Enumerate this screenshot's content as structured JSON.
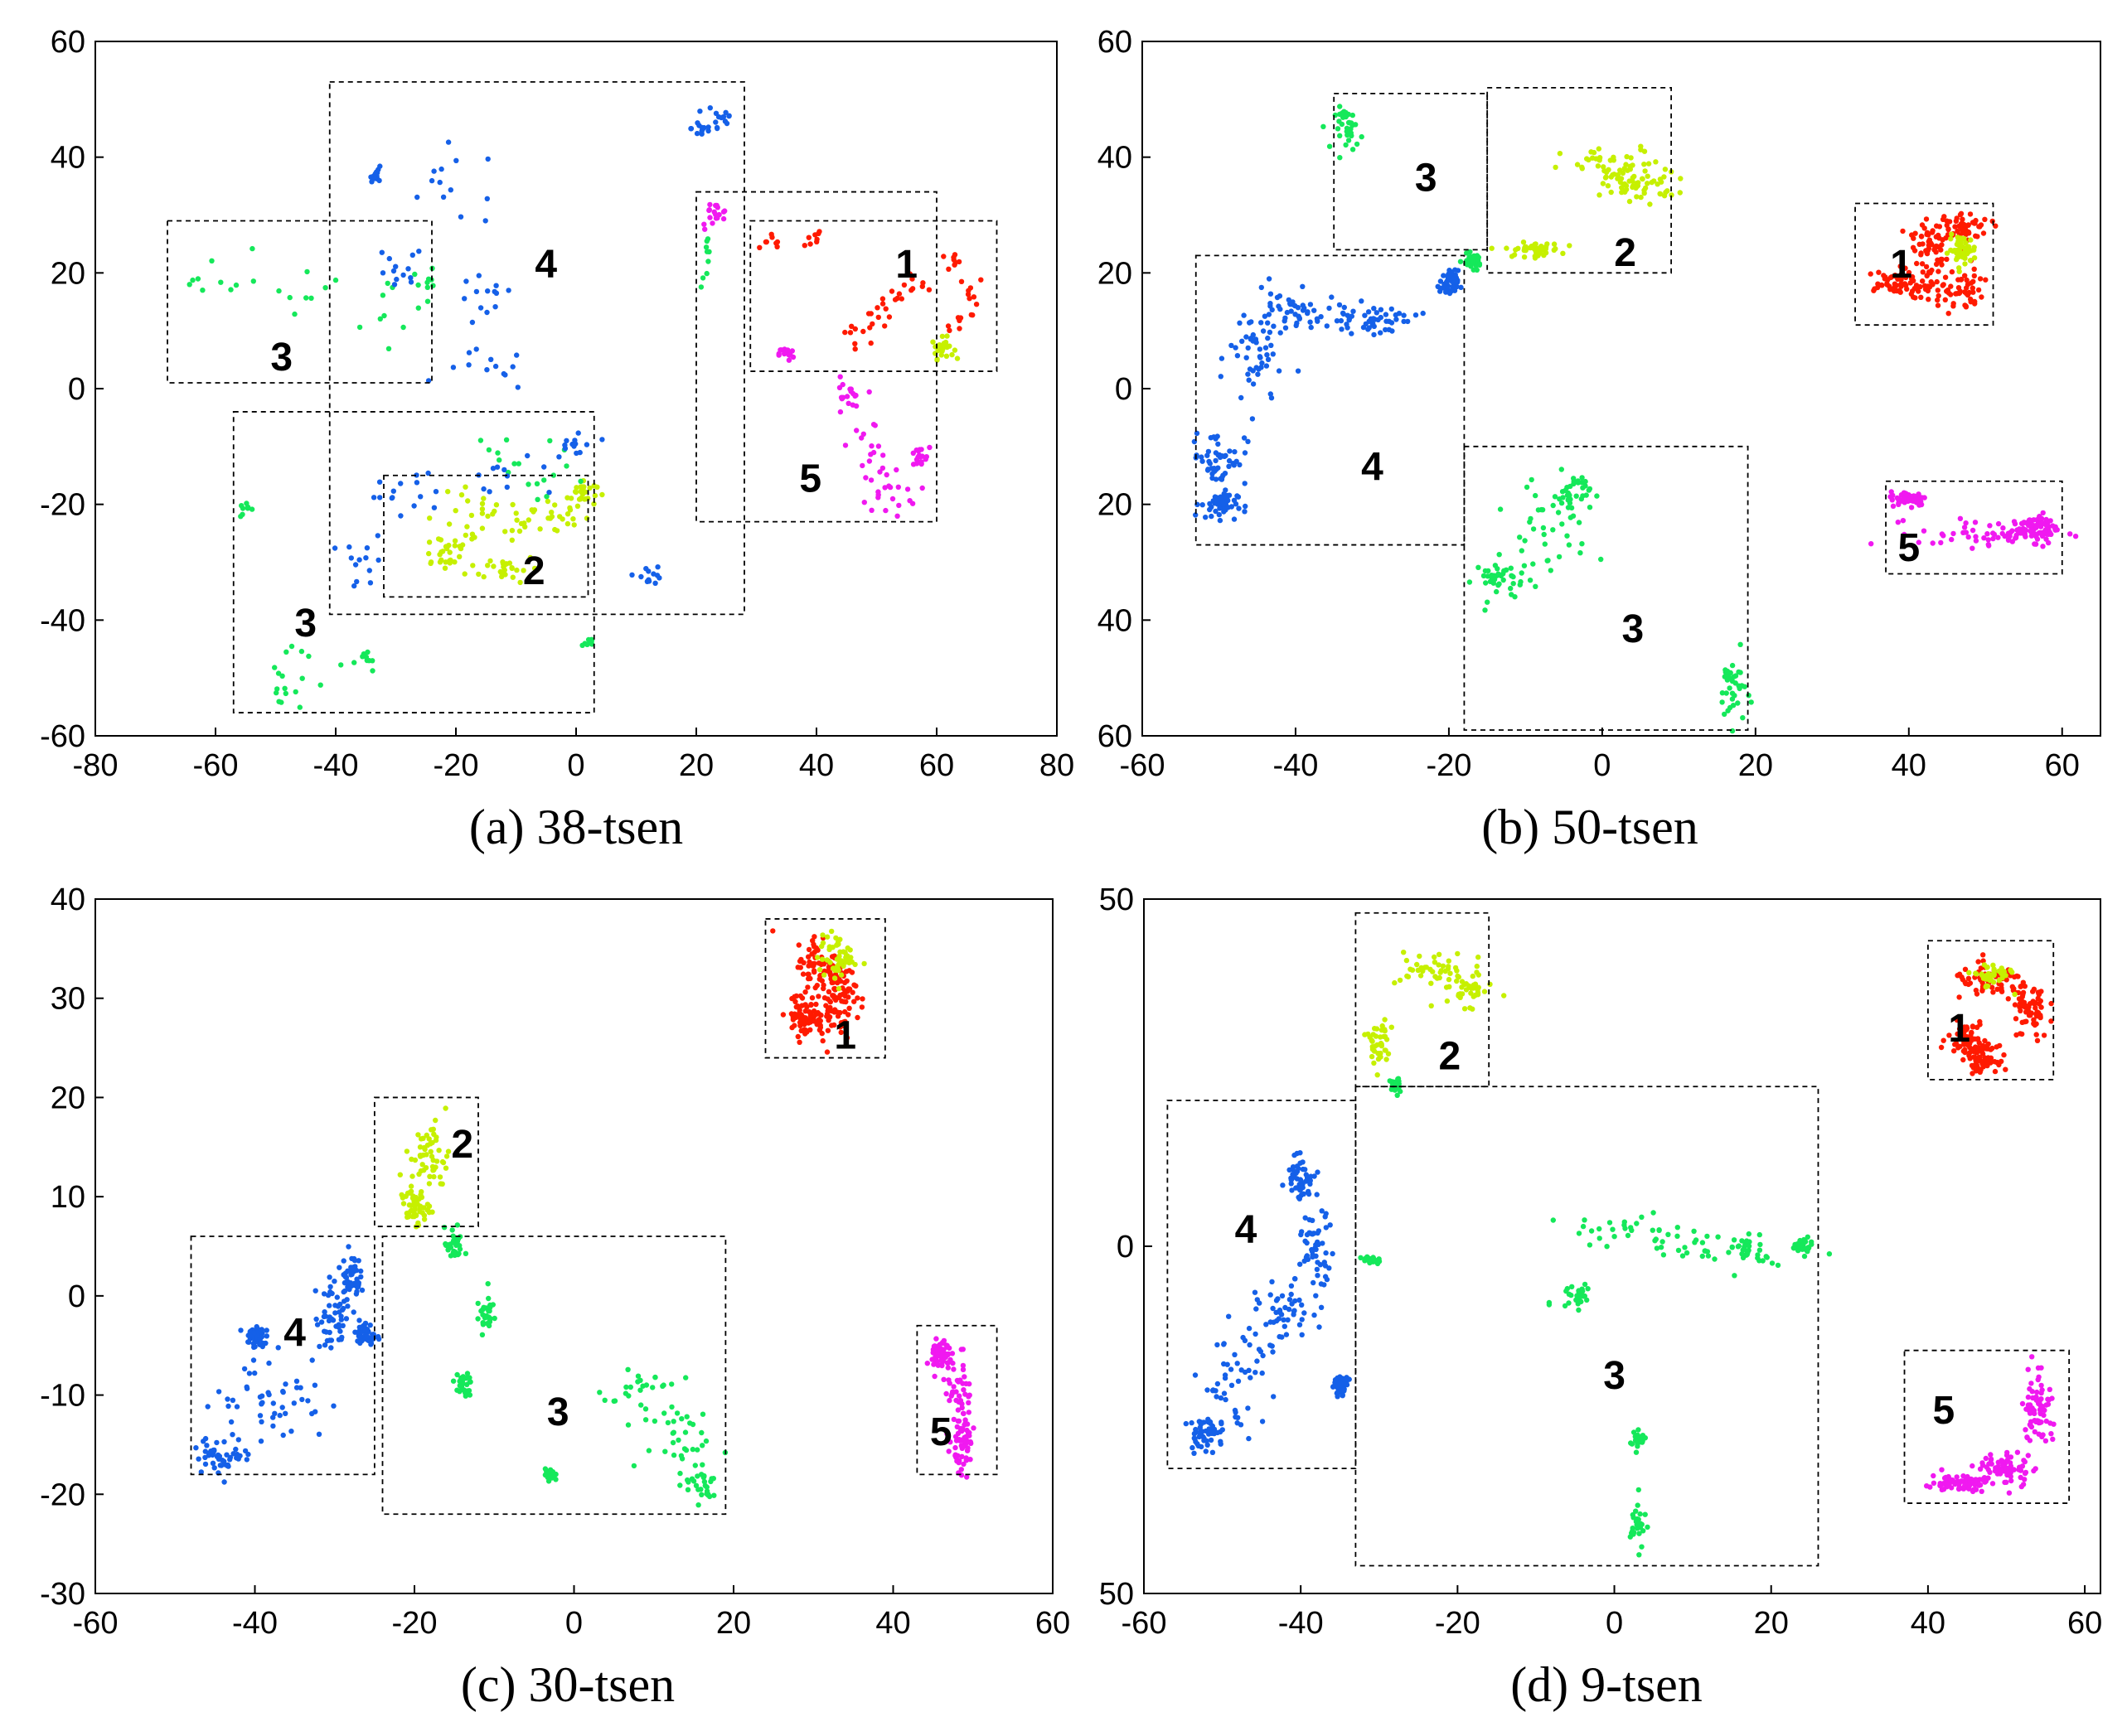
{
  "chart_data": [
    {
      "type": "scatter",
      "caption": "(a) 38-tsen",
      "xticks": [
        "-80",
        "-60",
        "-40",
        "-20",
        "0",
        "20",
        "40",
        "60",
        "80"
      ],
      "yticks": [
        "60",
        "40",
        "20",
        "0",
        "-20",
        "-40",
        "-60"
      ],
      "xlim": [
        -80,
        80
      ],
      "ylim": [
        -60,
        60
      ],
      "regions": [
        {
          "label": "1",
          "x0": 29,
          "x1": 70,
          "y0": 3,
          "y1": 29,
          "lx": 55,
          "ly": 21
        },
        {
          "label": "1",
          "x0": 20,
          "x1": 60,
          "y0": -23,
          "y1": 34
        },
        {
          "label": "2",
          "x0": -32,
          "x1": 2,
          "y0": -36,
          "y1": -15,
          "lx": -7,
          "ly": -32
        },
        {
          "label": "3",
          "x0": -68,
          "x1": -24,
          "y0": 1,
          "y1": 29,
          "lx": -49,
          "ly": 5
        },
        {
          "label": "3",
          "x0": -57,
          "x1": 3,
          "y0": -56,
          "y1": -4,
          "lx": -45,
          "ly": -41
        },
        {
          "label": "4",
          "x0": -41,
          "x1": 28,
          "y0": -39,
          "y1": 53,
          "lx": -5,
          "ly": 21
        },
        {
          "label": "5",
          "lx": 39,
          "ly": -16
        }
      ],
      "clusters": [
        {
          "color": "#ff1a00",
          "n": 70,
          "blobs": [
            [
              33,
              25,
              2,
              2
            ],
            [
              39,
              26,
              2,
              1.5
            ],
            [
              47,
              10,
              3,
              2
            ],
            [
              53,
              15,
              2,
              1.5
            ],
            [
              57,
              18,
              2,
              2
            ],
            [
              64,
              11,
              2,
              2
            ],
            [
              66,
              17,
              1.5,
              2
            ],
            [
              62,
              22,
              2,
              1.5
            ],
            [
              50,
              12,
              2,
              2
            ]
          ]
        },
        {
          "color": "#c6f000",
          "n": 160,
          "blobs": [
            [
              -15,
              -23,
              9,
              4
            ],
            [
              -5,
              -22,
              6,
              3
            ],
            [
              -22,
              -28,
              4,
              3
            ],
            [
              -12,
              -31,
              5,
              2
            ],
            [
              61,
              7,
              1.5,
              1.5
            ],
            [
              1,
              -18,
              2,
              2
            ]
          ]
        },
        {
          "color": "#15e85a",
          "n": 110,
          "blobs": [
            [
              -60,
              20,
              5,
              4
            ],
            [
              -45,
              18,
              5,
              4
            ],
            [
              -30,
              12,
              5,
              6
            ],
            [
              -25,
              18,
              2,
              2
            ],
            [
              -10,
              -10,
              10,
              4
            ],
            [
              -5,
              -16,
              6,
              2
            ],
            [
              -45,
              -48,
              6,
              3
            ],
            [
              -35,
              -47,
              2,
              2
            ],
            [
              -50,
              -52,
              3,
              2
            ],
            [
              -55,
              -21,
              1,
              1
            ],
            [
              22,
              22,
              1,
              4
            ],
            [
              2,
              -44,
              1,
              1
            ]
          ]
        },
        {
          "color": "#1560e8",
          "n": 150,
          "blobs": [
            [
              24,
              47,
              2,
              3
            ],
            [
              21,
              45,
              1.5,
              1.5
            ],
            [
              -20,
              35,
              9,
              6
            ],
            [
              -30,
              20,
              4,
              4
            ],
            [
              -15,
              15,
              4,
              4
            ],
            [
              -15,
              3,
              6,
              3
            ],
            [
              -30,
              -18,
              6,
              4
            ],
            [
              -10,
              -16,
              10,
              3
            ],
            [
              0,
              -10,
              3,
              3
            ],
            [
              -35,
              -30,
              3,
              4
            ],
            [
              12,
              -32,
              2,
              1.5
            ],
            [
              -33,
              37,
              1,
              1
            ]
          ]
        },
        {
          "color": "#f019f0",
          "n": 110,
          "blobs": [
            [
              23,
              30,
              2,
              2
            ],
            [
              49,
              -10,
              3,
              4
            ],
            [
              45,
              -2,
              2,
              3
            ],
            [
              52,
              -18,
              4,
              3
            ],
            [
              57,
              -12,
              1.5,
              1.5
            ],
            [
              35,
              6,
              1,
              1
            ]
          ]
        }
      ]
    },
    {
      "type": "scatter",
      "caption": "(b) 50-tsen",
      "xticks": [
        "-60",
        "-40",
        "-20",
        "0",
        "20",
        "40",
        "60"
      ],
      "yticks": [
        "60",
        "40",
        "20",
        "0",
        "20",
        "40",
        "60"
      ],
      "xlim": [
        -60,
        65
      ],
      "ylim": [
        -60,
        60
      ],
      "regions": [
        {
          "label": "1",
          "x0": 33,
          "x1": 51,
          "y0": 11,
          "y1": 32,
          "lx": 39,
          "ly": 21
        },
        {
          "label": "2",
          "x0": -15,
          "x1": 9,
          "y0": 20,
          "y1": 52,
          "lx": 3,
          "ly": 23
        },
        {
          "label": "3",
          "x0": -35,
          "x1": -15,
          "y0": 24,
          "y1": 51,
          "lx": -23,
          "ly": 36
        },
        {
          "label": "3",
          "x0": -18,
          "x1": 19,
          "y0": -59,
          "y1": -10,
          "lx": 4,
          "ly": -42
        },
        {
          "label": "4",
          "x0": -53,
          "x1": -18,
          "y0": -27,
          "y1": 23,
          "lx": -30,
          "ly": -14
        },
        {
          "label": "5",
          "x0": 37,
          "x1": 60,
          "y0": -32,
          "y1": -16,
          "lx": 40,
          "ly": -28
        }
      ],
      "clusters": [
        {
          "color": "#ff1a00",
          "n": 240,
          "blobs": [
            [
              43,
              24,
              4,
              5
            ],
            [
              47,
              28,
              3,
              2
            ],
            [
              38,
              18,
              4,
              2
            ],
            [
              46,
              17,
              3,
              3
            ]
          ]
        },
        {
          "color": "#c6f000",
          "n": 200,
          "blobs": [
            [
              2,
              38,
              6,
              3
            ],
            [
              5,
              35,
              4,
              2
            ],
            [
              -9,
              24,
              3,
              1
            ],
            [
              47,
              24,
              1.5,
              2
            ]
          ]
        },
        {
          "color": "#15e85a",
          "n": 230,
          "blobs": [
            [
              -33,
              45,
              1.5,
              3
            ],
            [
              -8,
              -25,
              5,
              7
            ],
            [
              -13,
              -33,
              3,
              3
            ],
            [
              -4,
              -18,
              2,
              3
            ],
            [
              17,
              -52,
              1.5,
              5
            ],
            [
              -17,
              22,
              1,
              1
            ]
          ]
        },
        {
          "color": "#1560e8",
          "n": 300,
          "blobs": [
            [
              -45,
              5,
              3,
              8
            ],
            [
              -40,
              13,
              5,
              3
            ],
            [
              -30,
              12,
              5,
              2
            ],
            [
              -50,
              -12,
              3,
              4
            ],
            [
              -50,
              -20,
              2,
              2
            ],
            [
              -20,
              18,
              1,
              2
            ]
          ]
        },
        {
          "color": "#f019f0",
          "n": 200,
          "blobs": [
            [
              51,
              -25,
              8,
              2
            ],
            [
              57,
              -24,
              2,
              2
            ],
            [
              40,
              -19,
              2,
              1
            ]
          ]
        }
      ]
    },
    {
      "type": "scatter",
      "caption": "(c) 30-tsen",
      "xticks": [
        "-60",
        "-40",
        "-20",
        "0",
        "20",
        "40",
        "60"
      ],
      "yticks": [
        "40",
        "30",
        "20",
        "10",
        "0",
        "-10",
        "-20",
        "-30"
      ],
      "xlim": [
        -60,
        60
      ],
      "ylim": [
        -30,
        40
      ],
      "regions": [
        {
          "label": "1",
          "x0": 24,
          "x1": 39,
          "y0": 24,
          "y1": 38,
          "lx": 34,
          "ly": 26
        },
        {
          "label": "2",
          "x0": -25,
          "x1": -12,
          "y0": 7,
          "y1": 20,
          "lx": -14,
          "ly": 15
        },
        {
          "label": "3",
          "x0": -24,
          "x1": 19,
          "y0": -22,
          "y1": 6,
          "lx": -2,
          "ly": -12
        },
        {
          "label": "4",
          "x0": -48,
          "x1": -25,
          "y0": -18,
          "y1": 6,
          "lx": -35,
          "ly": -4
        },
        {
          "label": "5",
          "x0": 43,
          "x1": 53,
          "y0": -18,
          "y1": -3,
          "lx": 46,
          "ly": -14
        }
      ],
      "clusters": [
        {
          "color": "#ff1a00",
          "n": 230,
          "blobs": [
            [
              31,
              33,
              3,
              3
            ],
            [
              29,
              28,
              2,
              1.5
            ],
            [
              33,
              30,
              2,
              3
            ]
          ]
        },
        {
          "color": "#c6f000",
          "n": 160,
          "blobs": [
            [
              -18,
              14,
              2,
              3
            ],
            [
              -20,
              9,
              1.5,
              1.5
            ],
            [
              33,
              34,
              2,
              2
            ]
          ]
        },
        {
          "color": "#15e85a",
          "n": 200,
          "blobs": [
            [
              8,
              -10,
              4,
              4
            ],
            [
              13,
              -14,
              3,
              3
            ],
            [
              16,
              -19,
              2,
              1.5
            ],
            [
              -11,
              -2,
              1,
              1.5
            ],
            [
              -14,
              -9,
              1,
              1
            ],
            [
              -15,
              5,
              1,
              1.5
            ],
            [
              -3,
              -18,
              0.5,
              0.5
            ]
          ]
        },
        {
          "color": "#1560e8",
          "n": 300,
          "blobs": [
            [
              -38,
              -10,
              6,
              4
            ],
            [
              -44,
              -16,
              3,
              1.5
            ],
            [
              -30,
              -2,
              2,
              3
            ],
            [
              -28,
              2,
              1,
              2
            ],
            [
              -40,
              -4,
              1,
              1
            ],
            [
              -26,
              -4,
              1,
              1
            ]
          ]
        },
        {
          "color": "#f019f0",
          "n": 160,
          "blobs": [
            [
              48,
              -10,
              1.5,
              4
            ],
            [
              46,
              -6,
              1,
              1.5
            ],
            [
              49,
              -15,
              1,
              2
            ]
          ]
        }
      ]
    },
    {
      "type": "scatter",
      "caption": "(d) 9-tsen",
      "xticks": [
        "-60",
        "-40",
        "-20",
        "0",
        "20",
        "40",
        "60"
      ],
      "yticks": [
        "50",
        "0",
        "50"
      ],
      "xlim": [
        -60,
        62
      ],
      "ylim": [
        -50,
        50
      ],
      "regions": [
        {
          "label": "1",
          "x0": 40,
          "x1": 56,
          "y0": 24,
          "y1": 44,
          "lx": 44,
          "ly": 31
        },
        {
          "label": "2",
          "x0": -33,
          "x1": -16,
          "y0": 23,
          "y1": 48,
          "lx": -21,
          "ly": 27
        },
        {
          "label": "3",
          "x0": -33,
          "x1": 26,
          "y0": -46,
          "y1": 23,
          "lx": 0,
          "ly": -19
        },
        {
          "label": "4",
          "x0": -57,
          "x1": -33,
          "y0": -32,
          "y1": 21,
          "lx": -47,
          "ly": 2
        },
        {
          "label": "5",
          "x0": 37,
          "x1": 58,
          "y0": -37,
          "y1": -15,
          "lx": 42,
          "ly": -24
        }
      ],
      "clusters": [
        {
          "color": "#ff1a00",
          "n": 260,
          "blobs": [
            [
              48,
              38,
              4,
              2
            ],
            [
              53,
              34,
              2,
              4
            ],
            [
              45,
              30,
              2,
              2
            ],
            [
              47,
              27,
              1.5,
              1.5
            ]
          ]
        },
        {
          "color": "#c6f000",
          "n": 160,
          "blobs": [
            [
              -23,
              40,
              4,
              2
            ],
            [
              -19,
              37,
              3,
              2
            ],
            [
              -30,
              29,
              1.5,
              3
            ],
            [
              48,
              39,
              2,
              1.5
            ]
          ]
        },
        {
          "color": "#15e85a",
          "n": 250,
          "blobs": [
            [
              0,
              2,
              8,
              2
            ],
            [
              12,
              0,
              6,
              2
            ],
            [
              18,
              -1,
              2,
              2
            ],
            [
              -5,
              -7,
              2,
              2
            ],
            [
              3,
              -28,
              0.8,
              1
            ],
            [
              3,
              -40,
              0.8,
              3
            ],
            [
              24,
              0,
              1,
              1
            ],
            [
              -31,
              -2,
              1,
              0.5
            ],
            [
              -28,
              23,
              0.5,
              1
            ]
          ]
        },
        {
          "color": "#1560e8",
          "n": 300,
          "blobs": [
            [
              -48,
              -19,
              4,
              6
            ],
            [
              -42,
              -10,
              3,
              4
            ],
            [
              -38,
              0,
              2,
              4
            ],
            [
              -40,
              10,
              1.5,
              3
            ],
            [
              -52,
              -27,
              2,
              2
            ],
            [
              -35,
              -20,
              0.8,
              1
            ]
          ]
        },
        {
          "color": "#f019f0",
          "n": 220,
          "blobs": [
            [
              54,
              -23,
              1.5,
              5
            ],
            [
              50,
              -32,
              3,
              2
            ],
            [
              44,
              -34,
              3,
              1
            ]
          ]
        }
      ]
    }
  ]
}
